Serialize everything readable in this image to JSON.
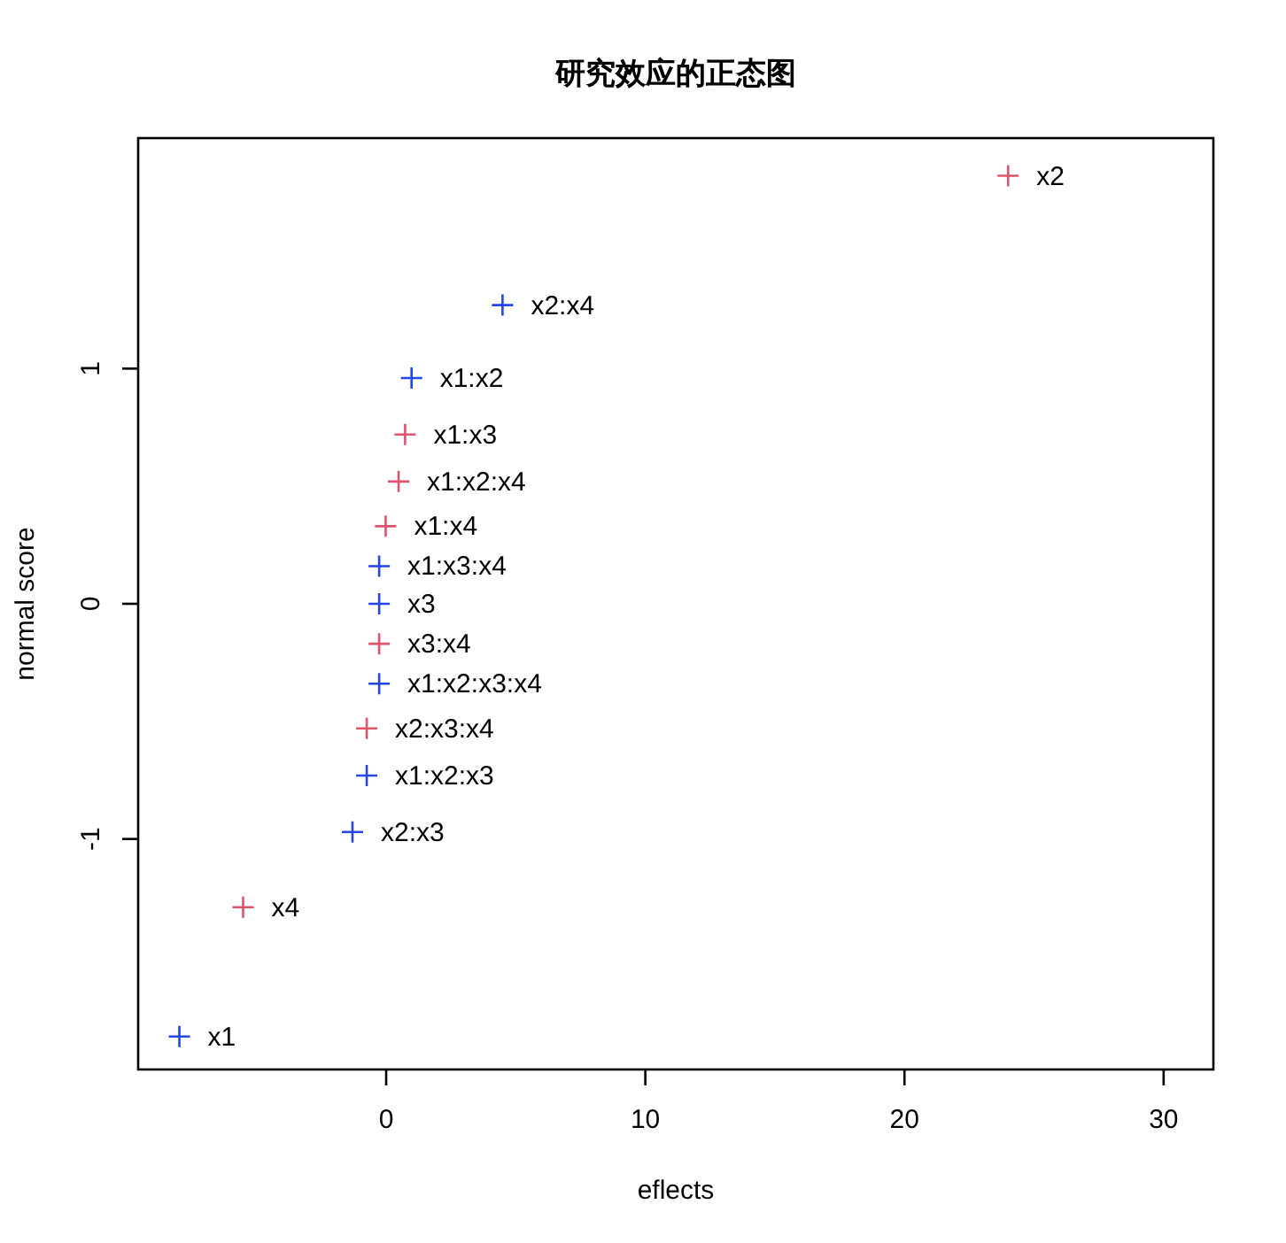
{
  "chart_data": {
    "type": "scatter",
    "title": "研究效应的正态图",
    "xlabel": "eflects",
    "ylabel": "normal score",
    "marker": "cross",
    "grid": false,
    "xlim": [
      -9.57,
      31.92
    ],
    "ylim": [
      -1.98,
      1.98
    ],
    "xticks": [
      0,
      10,
      20,
      30
    ],
    "yticks": [
      -1,
      0,
      1
    ],
    "series": [
      {
        "x": [
          -7.98,
          -5.52,
          -1.3,
          -0.75,
          -0.75,
          -0.27,
          -0.27,
          -0.27,
          -0.27,
          -0.02,
          0.48,
          0.73,
          0.98,
          4.49,
          24.0
        ],
        "values": [
          -1.84,
          -1.29,
          -0.97,
          -0.73,
          -0.53,
          -0.34,
          -0.17,
          0,
          0.16,
          0.33,
          0.52,
          0.72,
          0.96,
          1.27,
          1.82
        ],
        "colors": [
          "#2346e6",
          "#df536b",
          "#2346e6",
          "#2346e6",
          "#df536b",
          "#2346e6",
          "#df536b",
          "#2346e6",
          "#2346e6",
          "#df536b",
          "#df536b",
          "#df536b",
          "#2346e6",
          "#2346e6",
          "#df536b"
        ]
      }
    ],
    "annotations": [
      {
        "text": "x1",
        "x": -7.98,
        "y": -1.84
      },
      {
        "text": "x4",
        "x": -5.52,
        "y": -1.29
      },
      {
        "text": "x2:x3",
        "x": -1.3,
        "y": -0.97
      },
      {
        "text": "x1:x2:x3",
        "x": -0.75,
        "y": -0.73
      },
      {
        "text": "x2:x3:x4",
        "x": -0.75,
        "y": -0.53
      },
      {
        "text": "x1:x2:x3:x4",
        "x": -0.27,
        "y": -0.34
      },
      {
        "text": "x3:x4",
        "x": -0.27,
        "y": -0.17
      },
      {
        "text": "x3",
        "x": -0.27,
        "y": 0
      },
      {
        "text": "x1:x3:x4",
        "x": -0.27,
        "y": 0.16
      },
      {
        "text": "x1:x4",
        "x": -0.02,
        "y": 0.33
      },
      {
        "text": "x1:x2:x4",
        "x": 0.48,
        "y": 0.52
      },
      {
        "text": "x1:x3",
        "x": 0.73,
        "y": 0.72
      },
      {
        "text": "x1:x2",
        "x": 0.98,
        "y": 0.96
      },
      {
        "text": "x2:x4",
        "x": 4.49,
        "y": 1.27
      },
      {
        "text": "x2",
        "x": 24.0,
        "y": 1.82
      }
    ]
  }
}
